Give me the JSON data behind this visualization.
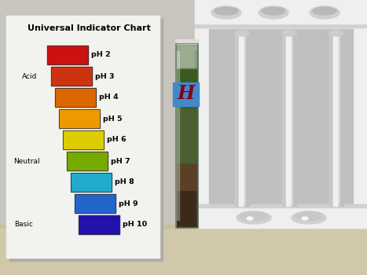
{
  "title": "Universal Indicator Chart",
  "ph_labels": [
    "pH 2",
    "pH 3",
    "pH 4",
    "pH 5",
    "pH 6",
    "pH 7",
    "pH 8",
    "pH 9",
    "pH 10"
  ],
  "ph_colors": [
    "#CC1111",
    "#CC3311",
    "#DD6600",
    "#EE9900",
    "#DDCC00",
    "#77AA00",
    "#22AACC",
    "#2266CC",
    "#2211AA"
  ],
  "acid_label": "Acid",
  "neutral_label": "Neutral",
  "basic_label": "Basic",
  "wall_color": "#C8C5BF",
  "table_color": "#D0C8A8",
  "card_color": "#F2F2EE",
  "card_shadow": "#B0ADA8",
  "rack_white": "#EFEFEF",
  "rack_shadow": "#D0D0D0",
  "rack_bg": "#C0BFBE",
  "tube_label": "H",
  "tube_label_color": "#880011",
  "tube_label_bg": "#4488CC",
  "tube_glass_color": "#AABBAA",
  "tube_liquid_top": "#3A5A20",
  "tube_liquid_mid": "#4A6030",
  "tube_sediment": "#5A4025",
  "tube_bottom": "#3B2A18"
}
